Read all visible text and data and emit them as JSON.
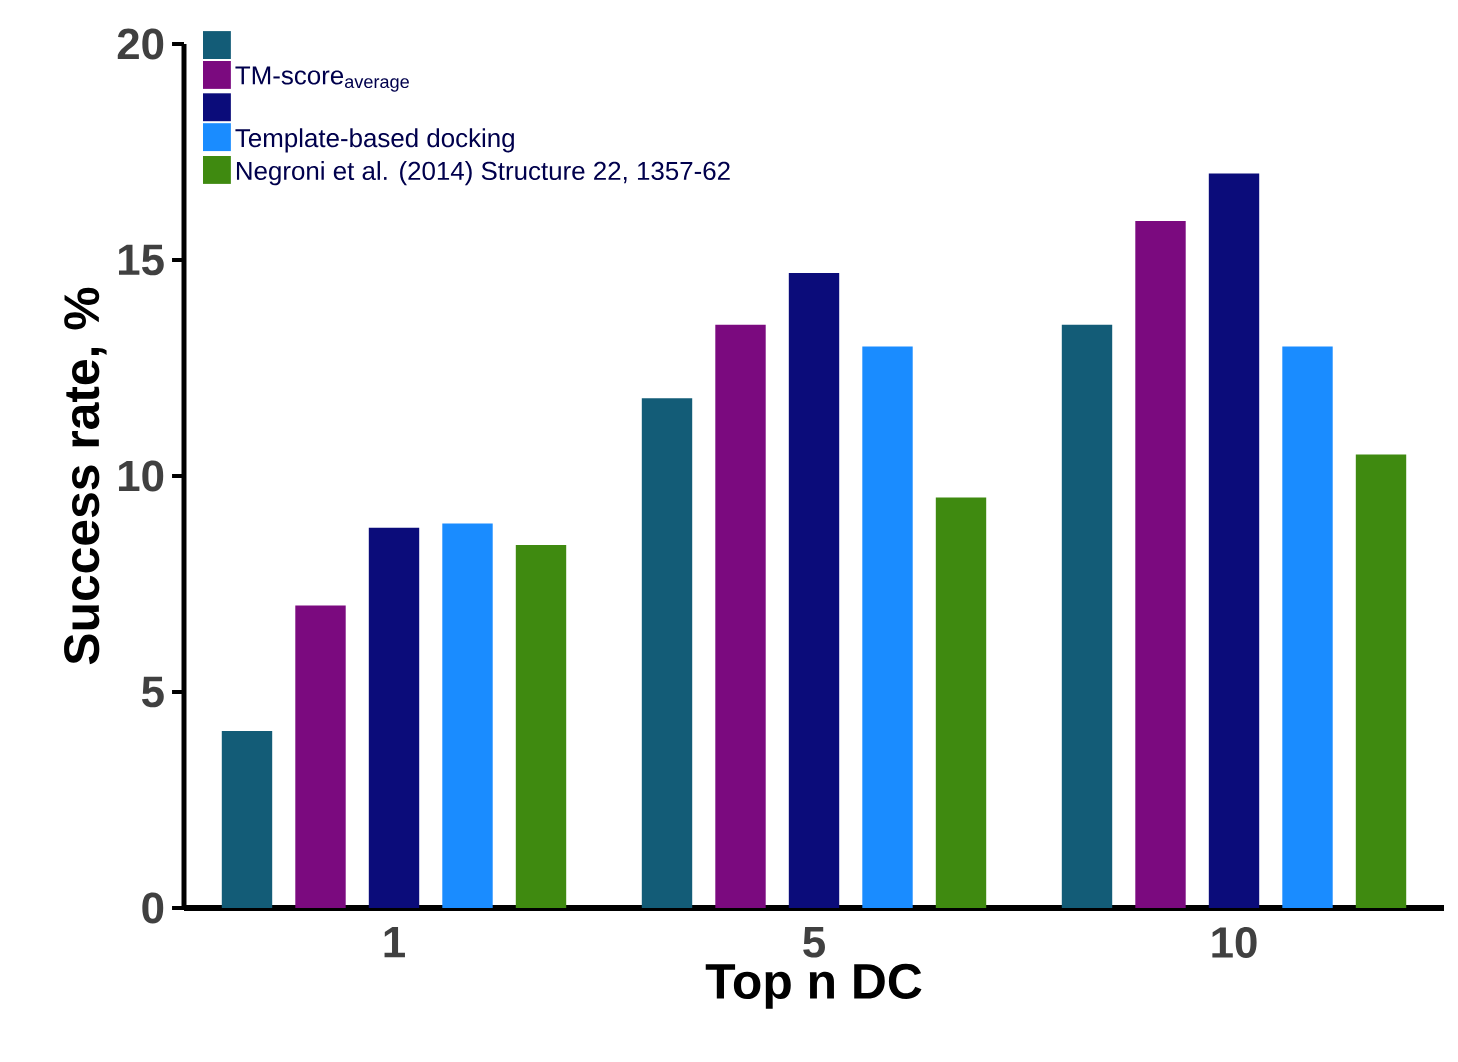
{
  "chart_data": {
    "type": "bar",
    "xlabel": "Top n DC",
    "ylabel": "Success rate, %",
    "categories": [
      "1",
      "5",
      "10"
    ],
    "series": [
      {
        "color": "#135c77",
        "values": [
          4.1,
          11.8,
          13.5
        ]
      },
      {
        "name": "TM-score$_{average}$",
        "color": "#7b0a7f",
        "values": [
          7.0,
          13.5,
          15.9
        ]
      },
      {
        "color": "#0b0c7a",
        "values": [
          8.8,
          14.7,
          17.0
        ]
      },
      {
        "name": "Template-based docking",
        "color": "#1a8cff",
        "values": [
          8.9,
          13.0,
          13.0
        ]
      },
      {
        "name": "Negroni et al. (2014) Structure 22, 1357-62",
        "color": "#3f8a10",
        "values": [
          8.4,
          9.5,
          10.5
        ]
      }
    ],
    "ylim": [
      0,
      20
    ],
    "yticks": [
      0,
      5,
      10,
      15,
      20
    ],
    "grid": false,
    "legend": "top left"
  }
}
